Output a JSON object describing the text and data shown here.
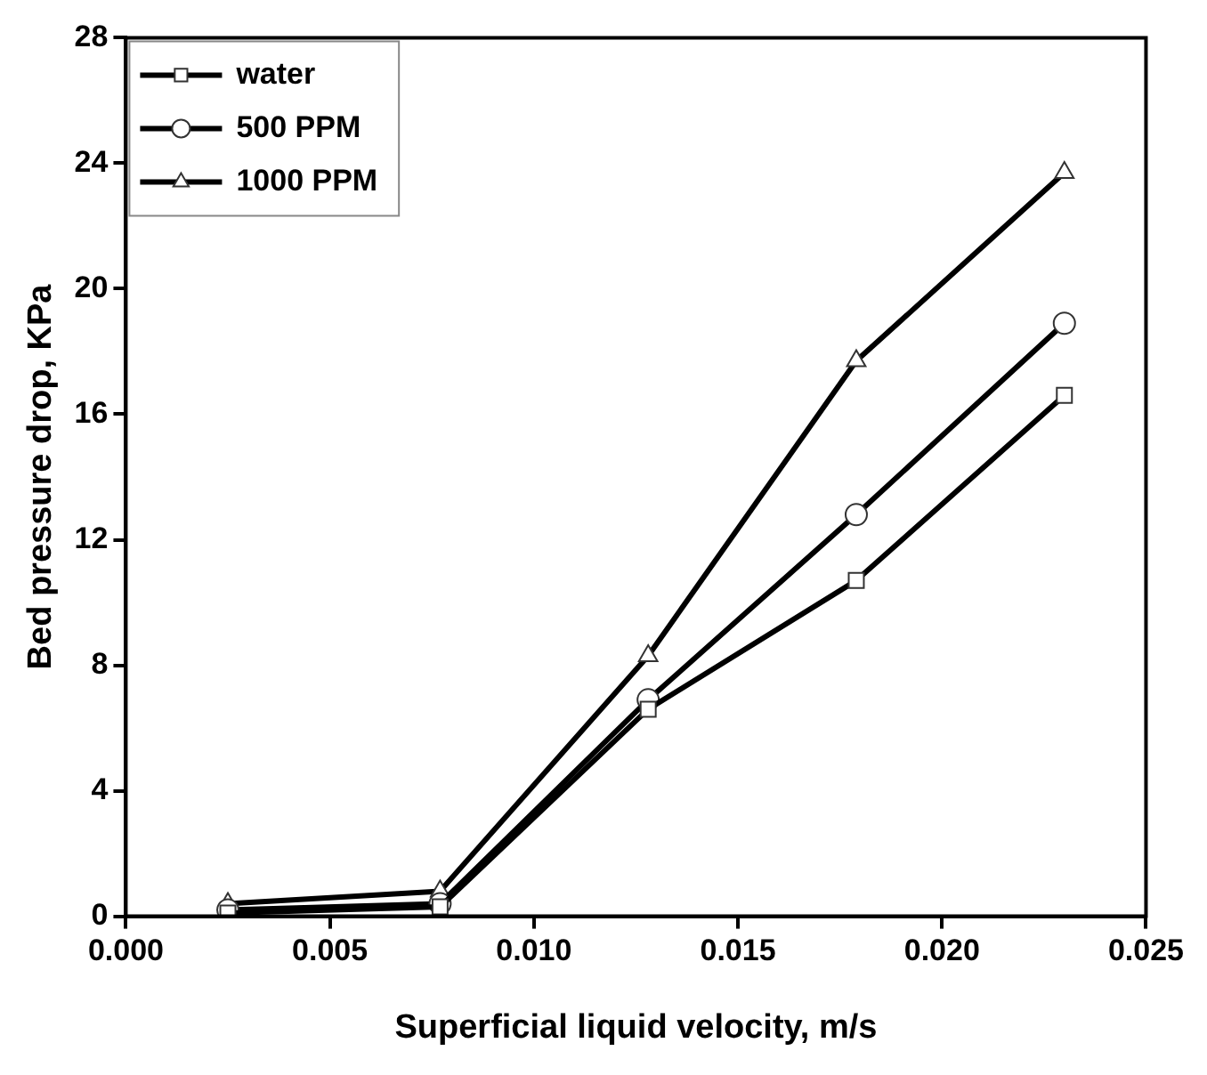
{
  "chart_data": {
    "type": "line",
    "xlabel": "Superficial liquid velocity, m/s",
    "ylabel": "Bed pressure drop, KPa",
    "x": [
      0.0025,
      0.0077,
      0.0128,
      0.0179,
      0.023
    ],
    "series": [
      {
        "name": "water",
        "color": "#000000",
        "marker": "square",
        "values": [
          0.1,
          0.3,
          6.6,
          10.7,
          16.6
        ]
      },
      {
        "name": "500 PPM",
        "color": "#000000",
        "marker": "circle",
        "values": [
          0.2,
          0.4,
          6.9,
          12.8,
          18.9
        ]
      },
      {
        "name": "1000 PPM",
        "color": "#000000",
        "marker": "triangle",
        "values": [
          0.4,
          0.8,
          8.3,
          17.7,
          23.7
        ]
      }
    ],
    "xlim": [
      0,
      0.025
    ],
    "xticks": [
      {
        "value": 0,
        "label": "0.000"
      },
      {
        "value": 0.005,
        "label": "0.005"
      },
      {
        "value": 0.01,
        "label": "0.010"
      },
      {
        "value": 0.015,
        "label": "0.015"
      },
      {
        "value": 0.02,
        "label": "0.020"
      },
      {
        "value": 0.025,
        "label": "0.025"
      }
    ],
    "ylim": [
      0,
      28
    ],
    "yticks": [
      0,
      4,
      8,
      12,
      16,
      20,
      24,
      28
    ],
    "grid": false,
    "legend": "top left",
    "line_style": "solid"
  }
}
